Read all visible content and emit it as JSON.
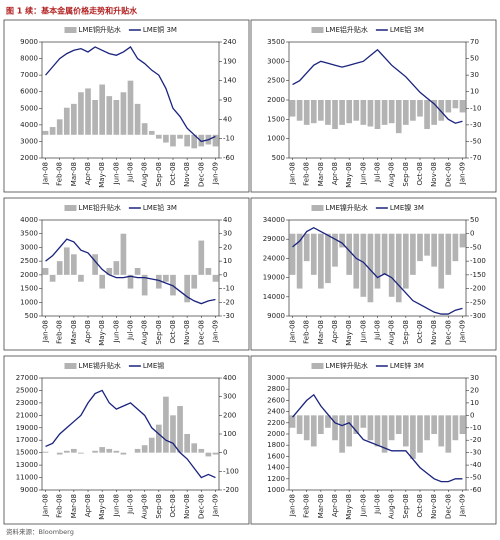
{
  "header": {
    "title": "图 1 续：基本金属价格走势和升贴水"
  },
  "footer": {
    "source": "资料来源：Bloomberg"
  },
  "chart_data": [
    {
      "type": "combo",
      "categories": [
        "Jan-08",
        null,
        "Feb-08",
        null,
        "Mar-08",
        null,
        "Apr-08",
        null,
        "May-08",
        null,
        "Jun-08",
        null,
        "Jul-08",
        null,
        "Aug-08",
        null,
        "Sep-08",
        null,
        "Oct-08",
        null,
        "Nov-08",
        null,
        "Dec-08",
        null,
        "Jan-09"
      ],
      "ylim": [
        2000,
        9000
      ],
      "yticks": [
        2000,
        3000,
        4000,
        5000,
        6000,
        7000,
        8000,
        9000
      ],
      "y2lim": [
        -60,
        240
      ],
      "y2ticks": [
        -60,
        -10,
        40,
        90,
        140,
        190,
        240
      ],
      "series": [
        {
          "name": "LME铜升贴水",
          "kind": "bar",
          "axis": "y2",
          "color": "#b3b3b3",
          "values": [
            10,
            20,
            40,
            70,
            80,
            110,
            120,
            90,
            130,
            100,
            90,
            110,
            140,
            80,
            30,
            10,
            -10,
            -20,
            -30,
            -10,
            -30,
            -35,
            -30,
            -25,
            -30
          ]
        },
        {
          "name": "LME铜 3M",
          "kind": "line",
          "color": "#1a237e",
          "values": [
            7000,
            7500,
            8000,
            8300,
            8500,
            8600,
            8400,
            8700,
            8500,
            8300,
            8200,
            8400,
            8700,
            8000,
            7700,
            7300,
            7000,
            6200,
            5000,
            4500,
            3800,
            3400,
            3000,
            3100,
            3300
          ]
        }
      ]
    },
    {
      "type": "combo",
      "categories": [
        "Jan-08",
        null,
        "Feb-08",
        null,
        "Mar-08",
        null,
        "Apr-08",
        null,
        "May-08",
        null,
        "Jun-08",
        null,
        "Jul-08",
        null,
        "Aug-08",
        null,
        "Sep-08",
        null,
        "Oct-08",
        null,
        "Nov-08",
        null,
        "Dec-08",
        null,
        "Jan-09"
      ],
      "ylim": [
        500,
        3500
      ],
      "yticks": [
        500,
        1000,
        1500,
        2000,
        2500,
        3000,
        3500
      ],
      "y2lim": [
        -70,
        70
      ],
      "y2ticks": [
        -70,
        -50,
        -30,
        -10,
        10,
        30,
        50,
        70
      ],
      "series": [
        {
          "name": "LME铝升贴水",
          "kind": "bar",
          "axis": "y2",
          "color": "#b3b3b3",
          "values": [
            -20,
            -25,
            -30,
            -28,
            -25,
            -30,
            -35,
            -30,
            -28,
            -25,
            -30,
            -32,
            -35,
            -30,
            -28,
            -40,
            -30,
            -25,
            -20,
            -35,
            -30,
            -25,
            -15,
            -10,
            -15
          ]
        },
        {
          "name": "LME铝 3M",
          "kind": "line",
          "color": "#1a237e",
          "values": [
            2400,
            2500,
            2700,
            2900,
            3000,
            2950,
            2900,
            2850,
            2900,
            2950,
            3000,
            3150,
            3300,
            3100,
            2900,
            2750,
            2600,
            2400,
            2200,
            2050,
            1900,
            1700,
            1500,
            1400,
            1450
          ]
        }
      ]
    },
    {
      "type": "combo",
      "categories": [
        "Jan-08",
        null,
        "Feb-08",
        null,
        "Mar-08",
        null,
        "Apr-08",
        null,
        "May-08",
        null,
        "Jun-08",
        null,
        "Jul-08",
        null,
        "Aug-08",
        null,
        "Sep-08",
        null,
        "Oct-08",
        null,
        "Nov-08",
        null,
        "Dec-08",
        null,
        "Jan-09"
      ],
      "ylim": [
        500,
        4000
      ],
      "yticks": [
        500,
        1000,
        1500,
        2000,
        2500,
        3000,
        3500,
        4000
      ],
      "y2lim": [
        -30,
        40
      ],
      "y2ticks": [
        -30,
        -20,
        -10,
        0,
        10,
        20,
        30,
        40
      ],
      "series": [
        {
          "name": "LME铅升贴水",
          "kind": "bar",
          "axis": "y2",
          "color": "#b3b3b3",
          "values": [
            5,
            -5,
            10,
            20,
            15,
            -5,
            0,
            15,
            -10,
            5,
            10,
            30,
            -10,
            5,
            -15,
            0,
            -10,
            -5,
            -15,
            0,
            -20,
            -10,
            25,
            5,
            -5
          ]
        },
        {
          "name": "LME铅 3M",
          "kind": "line",
          "color": "#1a237e",
          "values": [
            2500,
            2700,
            3000,
            3300,
            3200,
            2900,
            2800,
            2500,
            2200,
            2000,
            1900,
            1900,
            1950,
            1900,
            1900,
            1850,
            1800,
            1700,
            1600,
            1400,
            1200,
            1050,
            950,
            1050,
            1100
          ]
        }
      ]
    },
    {
      "type": "combo",
      "categories": [
        "Jan-08",
        null,
        "Feb-08",
        null,
        "Mar-08",
        null,
        "Apr-08",
        null,
        "May-08",
        null,
        "Jun-08",
        null,
        "Jul-08",
        null,
        "Aug-08",
        null,
        "Sep-08",
        null,
        "Oct-08",
        null,
        "Nov-08",
        null,
        "Dec-08",
        null,
        "Jan-09"
      ],
      "ylim": [
        9000,
        34000
      ],
      "yticks": [
        9000,
        14000,
        19000,
        24000,
        29000,
        34000
      ],
      "y2lim": [
        -300,
        50
      ],
      "y2ticks": [
        -300,
        -250,
        -200,
        -150,
        -100,
        -50,
        0,
        50
      ],
      "series": [
        {
          "name": "LME镍升贴水",
          "kind": "bar",
          "axis": "y2",
          "color": "#b3b3b3",
          "values": [
            -150,
            -200,
            -100,
            -150,
            -200,
            -180,
            -120,
            -50,
            -150,
            -200,
            -230,
            -250,
            -200,
            -150,
            -230,
            -250,
            -200,
            -150,
            -100,
            -80,
            -120,
            -200,
            -150,
            -100,
            -50
          ]
        },
        {
          "name": "LME镍 3M",
          "kind": "line",
          "color": "#1a237e",
          "values": [
            27000,
            28500,
            31000,
            32000,
            31000,
            30000,
            29000,
            28000,
            26000,
            24000,
            23000,
            21000,
            19000,
            20000,
            19000,
            17000,
            15000,
            13000,
            12000,
            11000,
            10000,
            9500,
            9500,
            10500,
            11000
          ]
        }
      ]
    },
    {
      "type": "combo",
      "categories": [
        "Jan-08",
        null,
        "Feb-08",
        null,
        "Mar-08",
        null,
        "Apr-08",
        null,
        "May-08",
        null,
        "Jun-08",
        null,
        "Jul-08",
        null,
        "Aug-08",
        null,
        "Sep-08",
        null,
        "Oct-08",
        null,
        "Nov-08",
        null,
        "Dec-08",
        null,
        "Jan-09"
      ],
      "ylim": [
        9000,
        27000
      ],
      "yticks": [
        9000,
        11000,
        13000,
        15000,
        17000,
        19000,
        21000,
        23000,
        25000,
        27000
      ],
      "y2lim": [
        -200,
        400
      ],
      "y2ticks": [
        -200,
        -100,
        0,
        100,
        200,
        300,
        400
      ],
      "series": [
        {
          "name": "LME锡升贴水",
          "kind": "bar",
          "axis": "y2",
          "color": "#b3b3b3",
          "values": [
            5,
            0,
            -10,
            10,
            20,
            -5,
            0,
            10,
            30,
            20,
            10,
            -10,
            0,
            20,
            40,
            80,
            150,
            300,
            200,
            250,
            100,
            50,
            20,
            -20,
            -10
          ]
        },
        {
          "name": "LME锡",
          "kind": "line",
          "color": "#1a237e",
          "values": [
            16000,
            16500,
            18000,
            19000,
            20000,
            21000,
            23000,
            24500,
            25000,
            23000,
            22000,
            22500,
            23000,
            22000,
            21000,
            19000,
            18000,
            17000,
            16500,
            15000,
            14000,
            12500,
            11000,
            11500,
            11000
          ]
        }
      ]
    },
    {
      "type": "combo",
      "categories": [
        "Jan-08",
        null,
        "Feb-08",
        null,
        "Mar-08",
        null,
        "Apr-08",
        null,
        "May-08",
        null,
        "Jun-08",
        null,
        "Jul-08",
        null,
        "Aug-08",
        null,
        "Sep-08",
        null,
        "Oct-08",
        null,
        "Nov-08",
        null,
        "Dec-08",
        null,
        "Jan-09"
      ],
      "ylim": [
        1000,
        3000
      ],
      "yticks": [
        1000,
        1200,
        1400,
        1600,
        1800,
        2000,
        2200,
        2400,
        2600,
        2800,
        3000
      ],
      "y2lim": [
        -60,
        30
      ],
      "y2ticks": [
        -60,
        -50,
        -40,
        -30,
        -20,
        -10,
        0,
        10,
        20,
        30
      ],
      "series": [
        {
          "name": "LME锌升贴水",
          "kind": "bar",
          "axis": "y2",
          "color": "#b3b3b3",
          "values": [
            -10,
            -15,
            -20,
            -25,
            -15,
            -10,
            -20,
            -30,
            -25,
            -15,
            -10,
            -20,
            -25,
            -30,
            -20,
            -15,
            -25,
            -35,
            -30,
            -20,
            -15,
            -25,
            -30,
            -20,
            -15
          ]
        },
        {
          "name": "LME锌 3M",
          "kind": "line",
          "color": "#1a237e",
          "values": [
            2300,
            2450,
            2600,
            2700,
            2500,
            2350,
            2200,
            2150,
            2200,
            2050,
            1900,
            1850,
            1800,
            1750,
            1700,
            1700,
            1700,
            1550,
            1400,
            1300,
            1200,
            1150,
            1150,
            1200,
            1200
          ]
        }
      ]
    }
  ]
}
